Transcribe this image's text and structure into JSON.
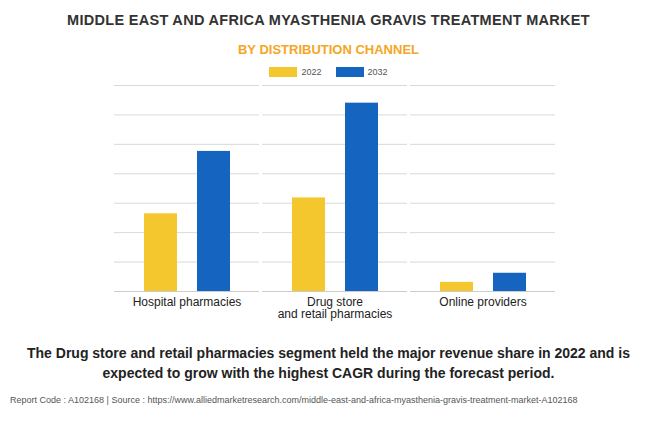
{
  "chart_data": {
    "type": "bar",
    "title": "MIDDLE EAST AND AFRICA MYASTHENIA GRAVIS TREATMENT MARKET",
    "subtitle": "BY DISTRIBUTION CHANNEL",
    "categories": [
      "Hospital pharmacies",
      "Drug store\nand retail pharmacies",
      "Online providers"
    ],
    "series": [
      {
        "name": "2022",
        "color": "#f4c72f",
        "values": [
          2.64,
          3.18,
          0.31
        ]
      },
      {
        "name": "2032",
        "color": "#1565c0",
        "values": [
          4.76,
          6.4,
          0.62
        ]
      }
    ],
    "ylim": [
      0,
      7
    ],
    "yticks": [
      0,
      1,
      2,
      3,
      4,
      5,
      6,
      7
    ],
    "grid": true,
    "tick_labels": "x",
    "legend": "top",
    "caption": "The Drug store and retail pharmacies segment held the major revenue share in 2022 and is expected to grow with the highest CAGR during the forecast period.",
    "source": "Report Code : A102168  |  Source : https://www.alliedmarketresearch.com/middle-east-and-africa-myasthenia-gravis-treatment-market-A102168"
  }
}
